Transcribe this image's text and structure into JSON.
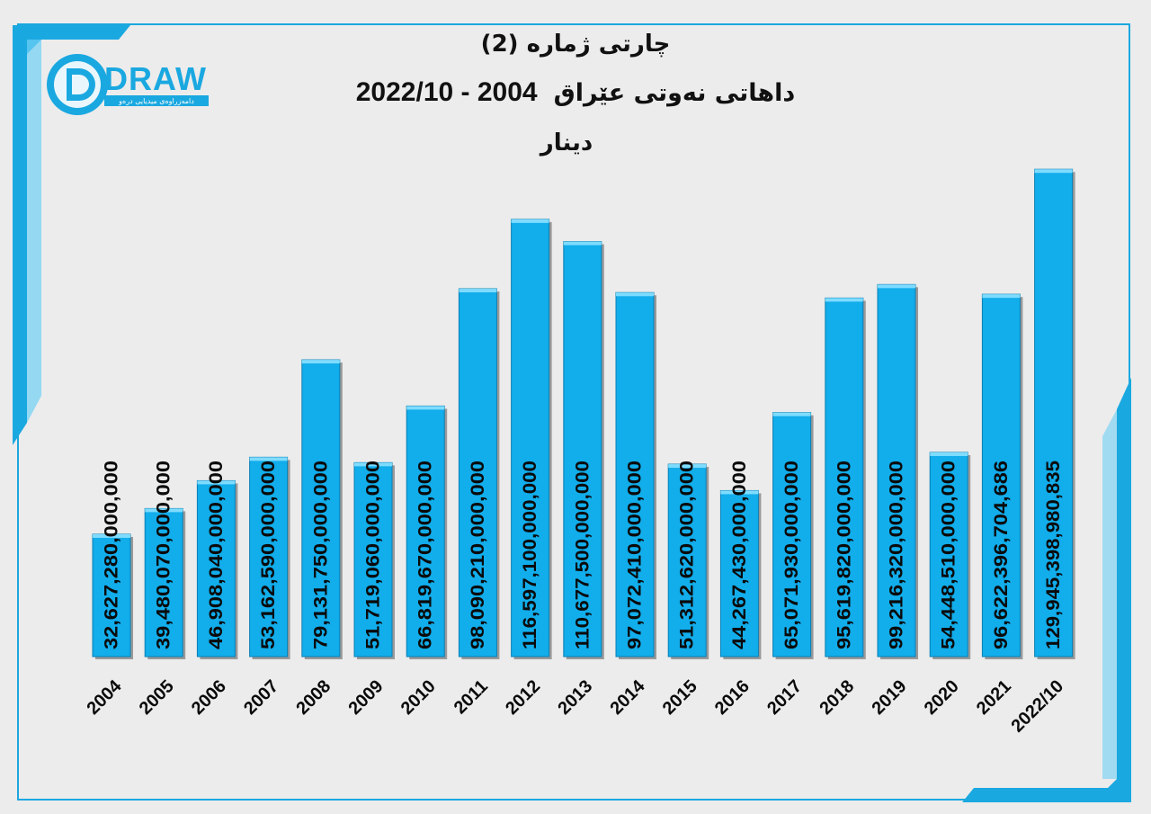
{
  "brand": {
    "logo_text": "DRAW",
    "logo_tagline": "دامەزراوەی میدیایی درەو",
    "accent_color": "#1aa8e0",
    "bar_color": "#12adeb",
    "bar_dark_color": "#0a7fb5"
  },
  "chart_data": {
    "type": "bar",
    "title": "چارتی ژمارە (2)",
    "subtitle": "داهاتی نەوتی عێراق",
    "subtitle_years": "2022/10 - 2004",
    "unit": "دینار",
    "categories": [
      "2004",
      "2005",
      "2006",
      "2007",
      "2008",
      "2009",
      "2010",
      "2011",
      "2012",
      "2013",
      "2014",
      "2015",
      "2016",
      "2017",
      "2018",
      "2019",
      "2020",
      "2021",
      "2022/10"
    ],
    "values": [
      32627280000000,
      39480070000000,
      46908040000000,
      53162590000000,
      79131750000000,
      51719060000000,
      66819670000000,
      98090210000000,
      116597100000000,
      110677500000000,
      97072410000000,
      51312620000000,
      44267430000000,
      65071930000000,
      95619820000000,
      99216320000000,
      54448510000000,
      96622396704686,
      129945398980835
    ],
    "value_labels": [
      "32,627,280,000,000",
      "39,480,070,000,000",
      "46,908,040,000,000",
      "53,162,590,000,000",
      "79,131,750,000,000",
      "51,719,060,000,000",
      "66,819,670,000,000",
      "98,090,210,000,000",
      "116,597,100,000,000",
      "110,677,500,000,000",
      "97,072,410,000,000",
      "51,312,620,000,000",
      "44,267,430,000,000",
      "65,071,930,000,000",
      "95,619,820,000,000",
      "99,216,320,000,000",
      "54,448,510,000,000",
      "96,622,396,704,686",
      "129,945,398,980,835"
    ],
    "ylim": [
      0,
      130000000000000
    ],
    "grid": false,
    "legend": "none"
  }
}
